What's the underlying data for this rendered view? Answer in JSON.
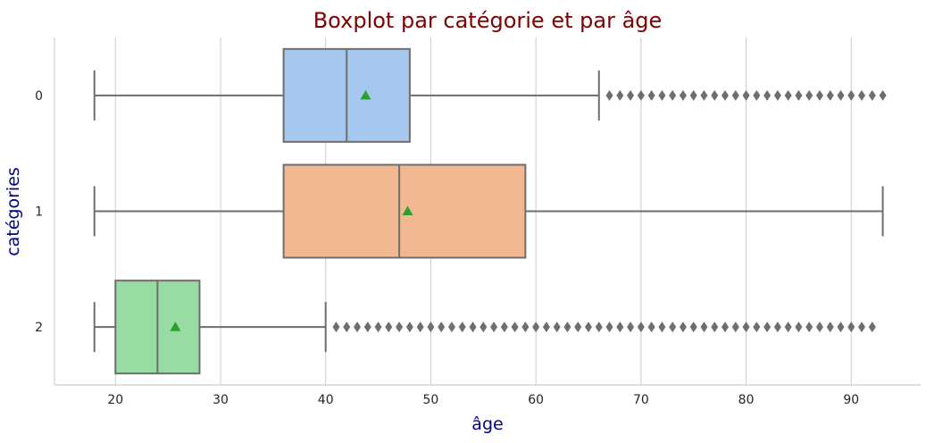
{
  "chart_data": {
    "type": "boxplot",
    "orientation": "horizontal",
    "title": "Boxplot par catégorie et par âge",
    "xlabel": "âge",
    "ylabel": "catégories",
    "xlim": [
      14.2,
      96.6
    ],
    "xticks": [
      20,
      30,
      40,
      50,
      60,
      70,
      80,
      90
    ],
    "grid": "vertical",
    "colors": {
      "title": "#800000",
      "axis_label": "#00008b",
      "grid": "#cccccc",
      "box_edge": "#6e6e6e",
      "mean_marker": "#2ca02c",
      "outlier": "#6e6e6e"
    },
    "series": [
      {
        "category": "0",
        "whisker_low": 18,
        "q1": 36,
        "median": 42,
        "q3": 48,
        "whisker_high": 66,
        "mean": 43.8,
        "outliers_from": 67,
        "outliers_to": 93,
        "color": "#a6c8ee"
      },
      {
        "category": "1",
        "whisker_low": 18,
        "q1": 36,
        "median": 47,
        "q3": 59,
        "whisker_high": 93,
        "mean": 47.8,
        "outliers_from": null,
        "outliers_to": null,
        "color": "#f2b891"
      },
      {
        "category": "2",
        "whisker_low": 18,
        "q1": 20,
        "median": 24,
        "q3": 28,
        "whisker_high": 40,
        "mean": 25.7,
        "outliers_from": 41,
        "outliers_to": 92,
        "color": "#98dca4"
      }
    ]
  }
}
